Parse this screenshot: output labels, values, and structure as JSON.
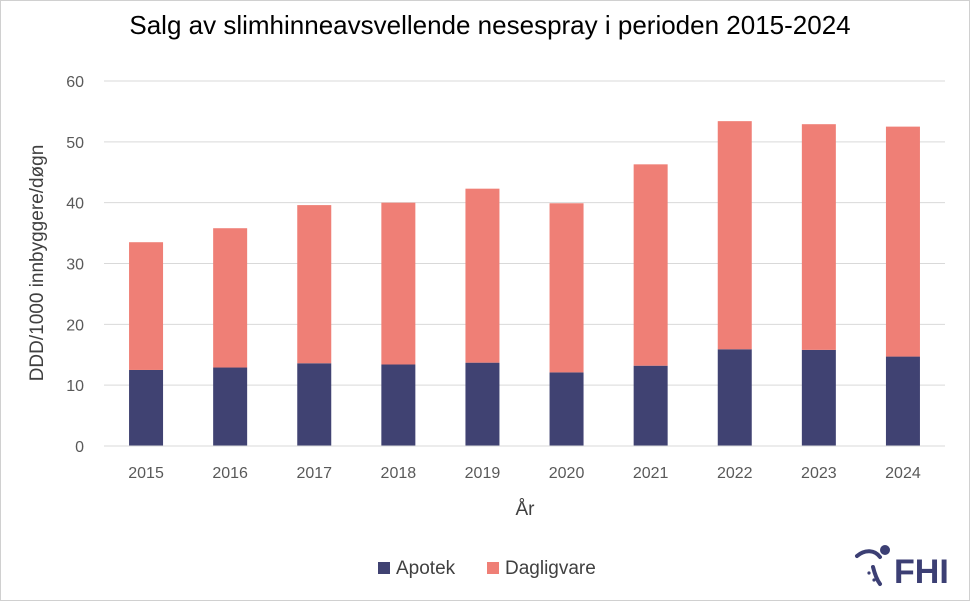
{
  "chart_data": {
    "type": "bar",
    "stacked": true,
    "title": "Salg av slimhinneavsvellende nesespray i perioden 2015-2024",
    "xlabel": "År",
    "ylabel": "DDD/1000 innbyggere/døgn",
    "ylim": [
      0,
      60
    ],
    "yticks": [
      0,
      10,
      20,
      30,
      40,
      50,
      60
    ],
    "grid": true,
    "legend_position": "bottom",
    "categories": [
      "2015",
      "2016",
      "2017",
      "2018",
      "2019",
      "2020",
      "2021",
      "2022",
      "2023",
      "2024"
    ],
    "series": [
      {
        "name": "Apotek",
        "color": "#404272",
        "values": [
          12.5,
          12.9,
          13.6,
          13.4,
          13.7,
          12.1,
          13.2,
          15.9,
          15.8,
          14.7
        ]
      },
      {
        "name": "Dagligvare",
        "color": "#ef7f76",
        "values": [
          21.0,
          22.9,
          26.0,
          26.6,
          28.6,
          27.8,
          33.1,
          37.5,
          37.1,
          37.8
        ]
      }
    ]
  },
  "logo": {
    "text": "FHI",
    "color": "#3c3f74"
  }
}
